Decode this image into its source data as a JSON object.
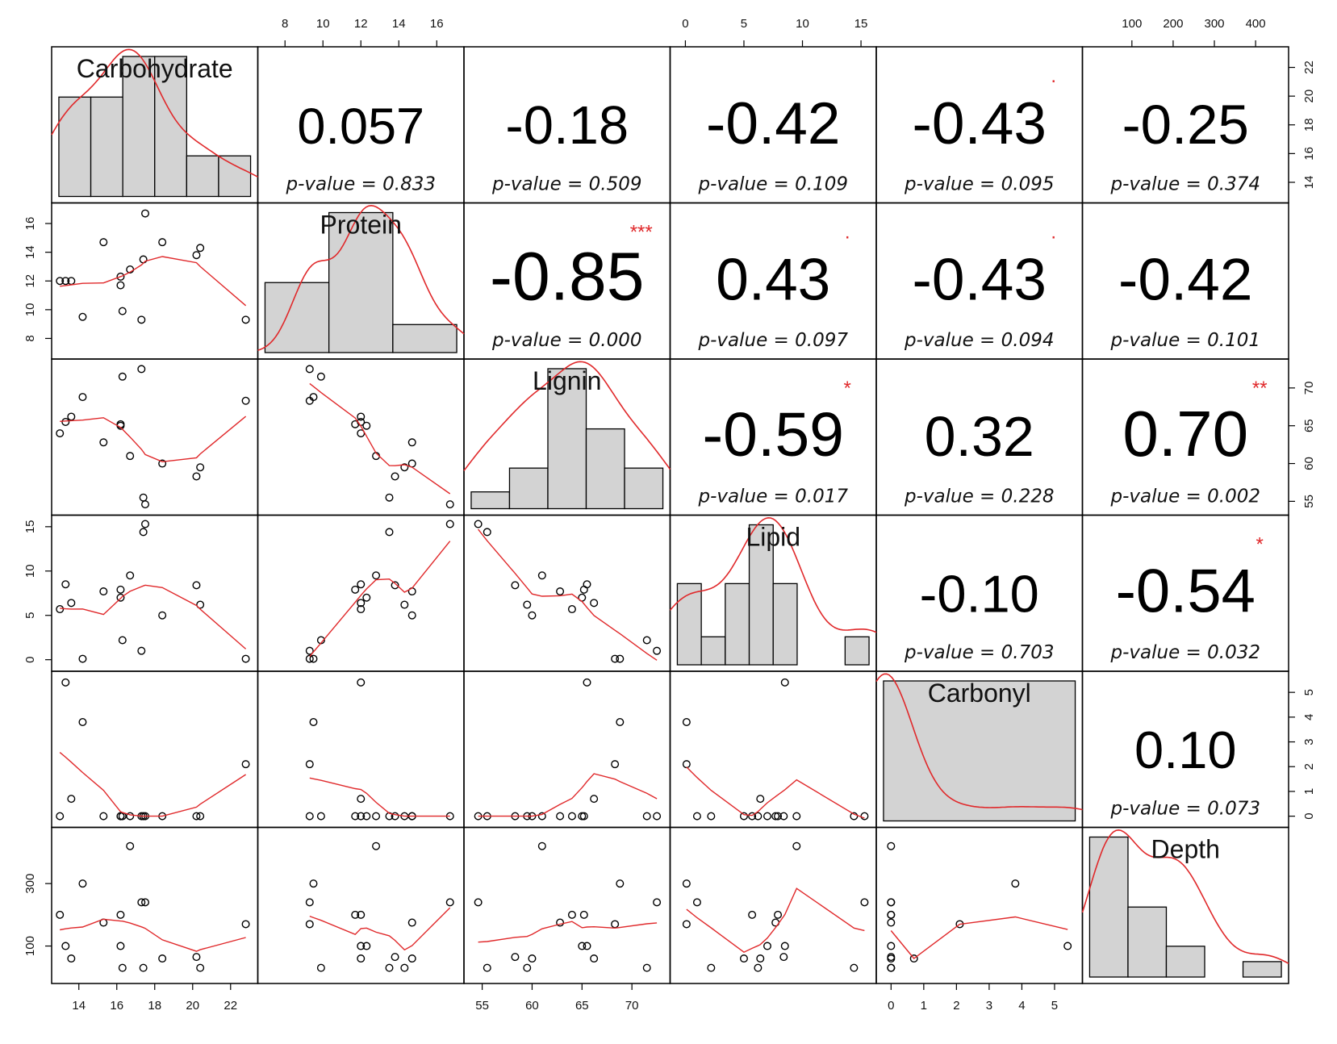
{
  "chart_data": {
    "type": "scatter",
    "variables": [
      "Carbohydrate",
      "Protein",
      "Lignin",
      "Lipid",
      "Carbonyl",
      "Depth"
    ],
    "observations": {
      "Carbohydrate": [
        13.0,
        13.3,
        13.6,
        14.2,
        15.3,
        16.2,
        16.2,
        16.3,
        16.7,
        17.3,
        17.4,
        17.5,
        18.4,
        20.2,
        20.4,
        22.8
      ],
      "Protein": [
        12.0,
        12.0,
        12.0,
        9.5,
        14.7,
        11.7,
        12.3,
        9.9,
        12.8,
        9.3,
        13.5,
        16.7,
        14.7,
        13.8,
        14.3,
        9.3
      ],
      "Lignin": [
        64.0,
        65.5,
        66.2,
        68.8,
        62.8,
        65.2,
        65.0,
        71.5,
        61.0,
        72.5,
        55.5,
        54.6,
        60.0,
        58.3,
        59.5,
        68.3
      ],
      "Lipid": [
        5.7,
        8.5,
        6.4,
        0.1,
        7.7,
        7.9,
        7.0,
        2.2,
        9.5,
        1.0,
        14.4,
        15.3,
        5.0,
        8.4,
        6.2,
        0.1
      ],
      "Carbonyl": [
        0.0,
        5.4,
        0.7,
        3.8,
        0.0,
        0.0,
        0.0,
        0.0,
        0.0,
        0.0,
        0.0,
        0.0,
        0.0,
        0.0,
        0.0,
        2.1
      ],
      "Depth": [
        200,
        100,
        60,
        300,
        175,
        200,
        100,
        30,
        420,
        240,
        30,
        240,
        60,
        65,
        30,
        170
      ]
    },
    "histogram_ranges": {
      "Carbohydrate": [
        13.0,
        23.0
      ],
      "Protein": [
        7.0,
        17.0
      ],
      "Lignin": [
        54.0,
        73.0
      ],
      "Lipid": [
        0.0,
        15.0
      ],
      "Carbonyl": [
        0.0,
        5.5
      ],
      "Depth": [
        0.0,
        450.0
      ]
    },
    "histograms": {
      "Carbohydrate": [
        0.71,
        0.71,
        1.0,
        1.0,
        0.29,
        0.29
      ],
      "Protein": [
        0.5,
        1.0,
        0.2
      ],
      "Lignin": [
        0.12,
        0.29,
        1.0,
        0.57,
        0.29
      ],
      "Lipid": [
        0.58,
        0.2,
        0.58,
        1.0,
        0.58,
        0.0,
        0.0,
        0.2
      ],
      "Carbonyl": [
        1.0
      ],
      "Depth": [
        1.0,
        0.5,
        0.22,
        0.0,
        0.11
      ]
    },
    "correlations": [
      {
        "row": "Carbohydrate",
        "col": "Protein",
        "r": "0.057",
        "p": "p-value = 0.833",
        "stars": ""
      },
      {
        "row": "Carbohydrate",
        "col": "Lignin",
        "r": "-0.18",
        "p": "p-value = 0.509",
        "stars": ""
      },
      {
        "row": "Carbohydrate",
        "col": "Lipid",
        "r": "-0.42",
        "p": "p-value = 0.109",
        "stars": ""
      },
      {
        "row": "Carbohydrate",
        "col": "Carbonyl",
        "r": "-0.43",
        "p": "p-value = 0.095",
        "stars": "."
      },
      {
        "row": "Carbohydrate",
        "col": "Depth",
        "r": "-0.25",
        "p": "p-value = 0.374",
        "stars": ""
      },
      {
        "row": "Protein",
        "col": "Lignin",
        "r": "-0.85",
        "p": "p-value = 0.000",
        "stars": "***"
      },
      {
        "row": "Protein",
        "col": "Lipid",
        "r": "0.43",
        "p": "p-value = 0.097",
        "stars": "."
      },
      {
        "row": "Protein",
        "col": "Carbonyl",
        "r": "-0.43",
        "p": "p-value = 0.094",
        "stars": "."
      },
      {
        "row": "Protein",
        "col": "Depth",
        "r": "-0.42",
        "p": "p-value = 0.101",
        "stars": ""
      },
      {
        "row": "Lignin",
        "col": "Lipid",
        "r": "-0.59",
        "p": "p-value = 0.017",
        "stars": "*"
      },
      {
        "row": "Lignin",
        "col": "Carbonyl",
        "r": "0.32",
        "p": "p-value = 0.228",
        "stars": ""
      },
      {
        "row": "Lignin",
        "col": "Depth",
        "r": "0.70",
        "p": "p-value = 0.002",
        "stars": "**"
      },
      {
        "row": "Lipid",
        "col": "Carbonyl",
        "r": "-0.10",
        "p": "p-value = 0.703",
        "stars": ""
      },
      {
        "row": "Lipid",
        "col": "Depth",
        "r": "-0.54",
        "p": "p-value = 0.032",
        "stars": "*"
      },
      {
        "row": "Carbonyl",
        "col": "Depth",
        "r": "0.10",
        "p": "p-value = 0.073",
        "stars": ""
      }
    ],
    "axes": {
      "top": [
        {
          "var": "Protein",
          "ticks": [
            "8",
            "10",
            "12",
            "14",
            "16"
          ]
        },
        {
          "var": "Lipid",
          "ticks": [
            "0",
            "5",
            "10",
            "15"
          ]
        },
        {
          "var": "Depth",
          "ticks": [
            "100",
            "200",
            "300",
            "400"
          ]
        }
      ],
      "bottom": [
        {
          "var": "Carbohydrate",
          "ticks": [
            "14",
            "16",
            "18",
            "20",
            "22"
          ]
        },
        {
          "var": "Lignin",
          "ticks": [
            "55",
            "60",
            "65",
            "70"
          ]
        },
        {
          "var": "Carbonyl",
          "ticks": [
            "0",
            "1",
            "2",
            "3",
            "4",
            "5"
          ]
        }
      ],
      "left": [
        {
          "var": "Protein",
          "ticks": [
            "8",
            "10",
            "12",
            "14",
            "16"
          ]
        },
        {
          "var": "Lipid",
          "ticks": [
            "0",
            "5",
            "10",
            "15"
          ]
        },
        {
          "var": "Depth",
          "ticks": [
            "100",
            "300"
          ]
        }
      ],
      "right": [
        {
          "var": "Carbohydrate",
          "ticks": [
            "14",
            "16",
            "18",
            "20",
            "22"
          ]
        },
        {
          "var": "Lignin",
          "ticks": [
            "55",
            "60",
            "65",
            "70"
          ]
        },
        {
          "var": "Carbonyl",
          "ticks": [
            "0",
            "1",
            "2",
            "3",
            "4",
            "5"
          ]
        }
      ]
    },
    "colors": {
      "smooth": "#e0282a",
      "stars": "#e0282a",
      "bar_fill": "#d3d3d3",
      "points": "#000000"
    }
  }
}
